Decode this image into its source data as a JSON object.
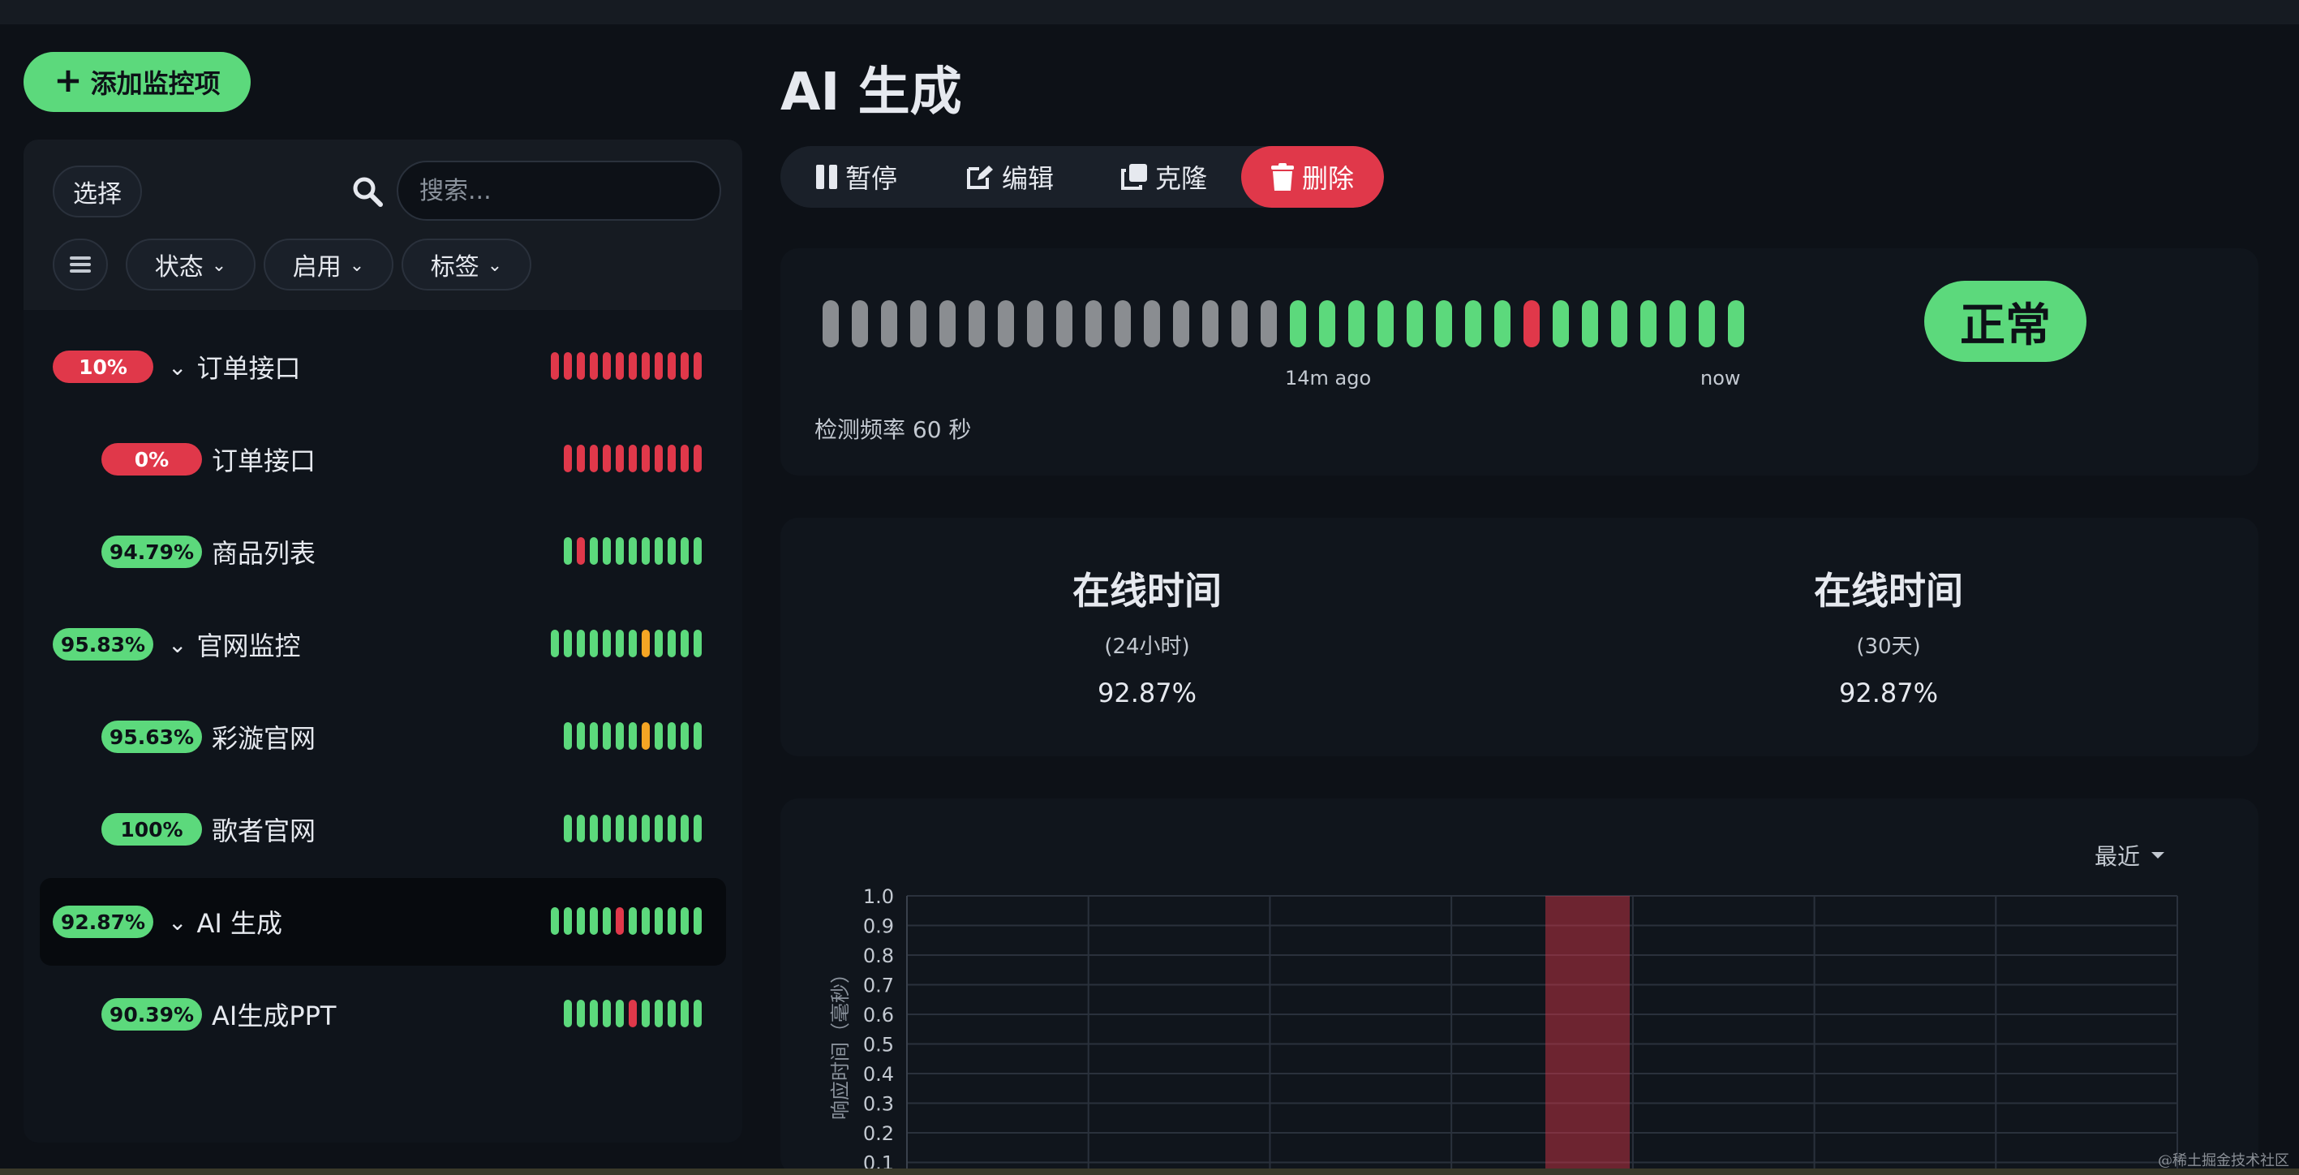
{
  "toolbar": {
    "add_label": "添加监控项"
  },
  "filters": {
    "select_label": "选择",
    "search_placeholder": "搜索...",
    "status_label": "状态",
    "enabled_label": "启用",
    "tags_label": "标签"
  },
  "colors": {
    "up": "#5cd97c",
    "down": "#e0384a",
    "pending": "#f5a524",
    "empty": "#8a8d91"
  },
  "monitors": [
    {
      "badge": "10%",
      "status": "red",
      "name": "订单接口",
      "group": true,
      "active": false,
      "beats": [
        "down",
        "down",
        "down",
        "down",
        "down",
        "down",
        "down",
        "down",
        "down",
        "down",
        "down",
        "down"
      ]
    },
    {
      "badge": "0%",
      "status": "red",
      "name": "订单接口",
      "group": false,
      "active": false,
      "beats": [
        "down",
        "down",
        "down",
        "down",
        "down",
        "down",
        "down",
        "down",
        "down",
        "down",
        "down"
      ]
    },
    {
      "badge": "94.79%",
      "status": "green",
      "name": "商品列表",
      "group": false,
      "active": false,
      "beats": [
        "up",
        "down",
        "up",
        "up",
        "up",
        "up",
        "up",
        "up",
        "up",
        "up",
        "up"
      ]
    },
    {
      "badge": "95.83%",
      "status": "green",
      "name": "官网监控",
      "group": true,
      "active": false,
      "beats": [
        "up",
        "up",
        "up",
        "up",
        "up",
        "up",
        "up",
        "pending",
        "up",
        "up",
        "up",
        "up"
      ]
    },
    {
      "badge": "95.63%",
      "status": "green",
      "name": "彩漩官网",
      "group": false,
      "active": false,
      "beats": [
        "up",
        "up",
        "up",
        "up",
        "up",
        "up",
        "pending",
        "up",
        "up",
        "up",
        "up"
      ]
    },
    {
      "badge": "100%",
      "status": "green",
      "name": "歌者官网",
      "group": false,
      "active": false,
      "beats": [
        "up",
        "up",
        "up",
        "up",
        "up",
        "up",
        "up",
        "up",
        "up",
        "up",
        "up"
      ]
    },
    {
      "badge": "92.87%",
      "status": "green",
      "name": "AI 生成",
      "group": true,
      "active": true,
      "beats": [
        "up",
        "up",
        "up",
        "up",
        "up",
        "down",
        "up",
        "up",
        "up",
        "up",
        "up",
        "up"
      ]
    },
    {
      "badge": "90.39%",
      "status": "green",
      "name": "AI生成PPT",
      "group": false,
      "active": false,
      "beats": [
        "up",
        "up",
        "up",
        "up",
        "up",
        "down",
        "up",
        "up",
        "up",
        "up",
        "up"
      ]
    }
  ],
  "detail": {
    "title": "AI 生成",
    "actions": {
      "pause": "暂停",
      "edit": "编辑",
      "clone": "克隆",
      "delete": "删除"
    },
    "beats": [
      "empty",
      "empty",
      "empty",
      "empty",
      "empty",
      "empty",
      "empty",
      "empty",
      "empty",
      "empty",
      "empty",
      "empty",
      "empty",
      "empty",
      "empty",
      "empty",
      "up",
      "up",
      "up",
      "up",
      "up",
      "up",
      "up",
      "up",
      "down",
      "up",
      "up",
      "up",
      "up",
      "up",
      "up",
      "up"
    ],
    "beat_start_label": "14m ago",
    "beat_end_label": "now",
    "frequency": "检测频率 60 秒",
    "status": "正常",
    "uptime": [
      {
        "heading": "在线时间",
        "period": "(24小时)",
        "value": "92.87%"
      },
      {
        "heading": "在线时间",
        "period": "(30天)",
        "value": "92.87%"
      }
    ],
    "range_label": "最近"
  },
  "chart_data": {
    "type": "bar",
    "ylabel": "响应时间（毫秒）",
    "yticks": [
      "1.0",
      "0.9",
      "0.8",
      "0.7",
      "0.6",
      "0.5",
      "0.4",
      "0.3",
      "0.2",
      "0.1"
    ],
    "ylim": [
      0,
      1.0
    ],
    "grid": true,
    "down_bars": [
      {
        "column": 4,
        "value": 1.0
      }
    ]
  },
  "watermark": "@稀土掘金技术社区"
}
